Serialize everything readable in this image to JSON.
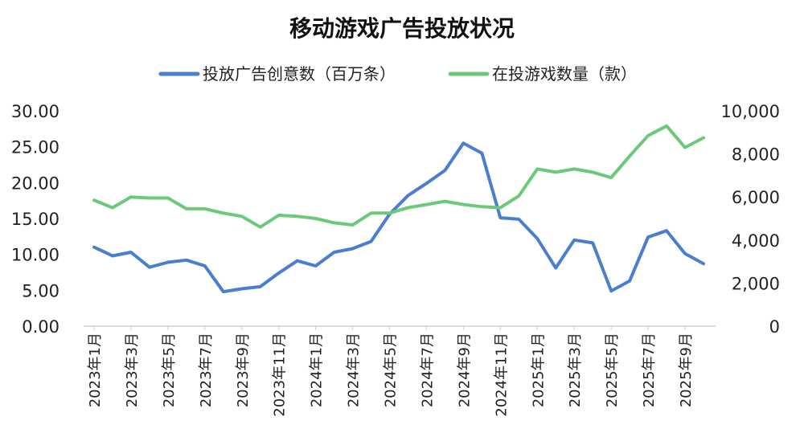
{
  "chart_data": {
    "type": "line",
    "title": "移动游戏广告投放状况",
    "legend_position": "top",
    "grid": false,
    "x": [
      "2023年1月",
      "2023年2月",
      "2023年3月",
      "2023年4月",
      "2023年5月",
      "2023年6月",
      "2023年7月",
      "2023年8月",
      "2023年9月",
      "2023年10月",
      "2023年11月",
      "2023年12月",
      "2024年1月",
      "2024年2月",
      "2024年3月",
      "2024年4月",
      "2024年5月",
      "2024年6月",
      "2024年7月",
      "2024年8月",
      "2024年9月",
      "2024年10月",
      "2024年11月",
      "2024年12月",
      "2025年1月",
      "2025年2月",
      "2025年3月",
      "2025年4月",
      "2025年5月",
      "2025年6月",
      "2025年7月",
      "2025年8月",
      "2025年9月",
      "2025年10月"
    ],
    "x_tick_labels": [
      "2023年1月",
      "2023年3月",
      "2023年5月",
      "2023年7月",
      "2023年9月",
      "2023年11月",
      "2024年1月",
      "2024年3月",
      "2024年5月",
      "2024年7月",
      "2024年9月",
      "2024年11月",
      "2025年1月",
      "2025年3月",
      "2025年5月",
      "2025年7月",
      "2025年9月"
    ],
    "y_left": {
      "ylim": [
        0,
        30
      ],
      "ticks": [
        "0.00",
        "5.00",
        "10.00",
        "15.00",
        "20.00",
        "25.00",
        "30.00"
      ]
    },
    "y_right": {
      "ylim": [
        0,
        10000
      ],
      "ticks": [
        "0",
        "2,000",
        "4,000",
        "6,000",
        "8,000",
        "10,000"
      ]
    },
    "series": [
      {
        "name": "投放广告创意数（百万条）",
        "axis": "left",
        "color": "#4A7ED0",
        "values": [
          11.0,
          9.8,
          10.3,
          8.2,
          8.9,
          9.2,
          8.4,
          4.8,
          5.2,
          5.5,
          7.4,
          9.1,
          8.4,
          10.3,
          10.8,
          11.8,
          15.6,
          18.2,
          19.9,
          21.7,
          25.5,
          24.1,
          15.1,
          14.9,
          12.2,
          8.1,
          12.0,
          11.6,
          4.9,
          6.3,
          12.4,
          13.3,
          10.1,
          8.7
        ]
      },
      {
        "name": "在投游戏数量（款）",
        "axis": "right",
        "color": "#6CC97A",
        "values": [
          5850,
          5500,
          6000,
          5950,
          5950,
          5450,
          5450,
          5250,
          5100,
          4600,
          5150,
          5100,
          5000,
          4800,
          4700,
          5250,
          5250,
          5500,
          5650,
          5800,
          5650,
          5550,
          5500,
          6050,
          7300,
          7150,
          7300,
          7150,
          6900,
          7900,
          8850,
          9300,
          8300,
          8750
        ]
      }
    ]
  }
}
